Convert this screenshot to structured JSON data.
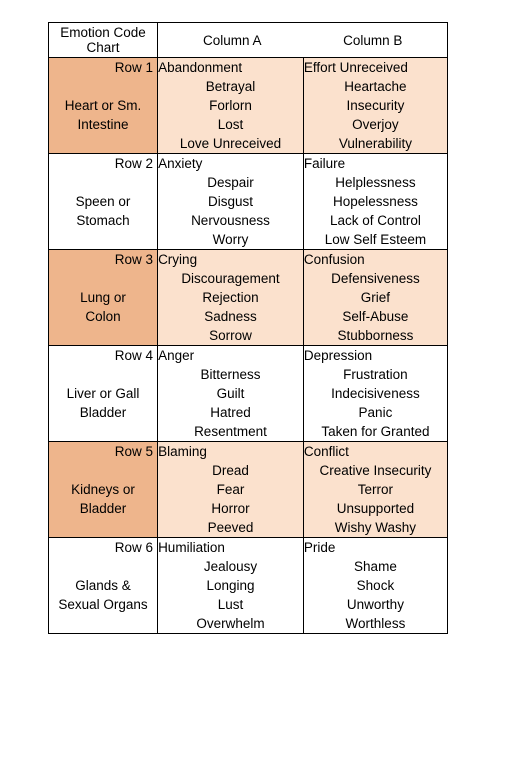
{
  "chart": {
    "title_line1": "Emotion Code",
    "title_line2": "Chart",
    "col_a": "Column A",
    "col_b": "Column B",
    "colors": {
      "odd_label_bg": "#eeb58c",
      "odd_data_bg": "#fbe1cd",
      "even_bg": "#ffffff",
      "border": "#000000",
      "text": "#000000"
    },
    "rows": [
      {
        "row_label": "Row 1",
        "body_label1": "Heart or Sm.",
        "body_label2": "Intestine",
        "colA_head": "Abandonment",
        "colB_head": "Effort Unreceived",
        "colA": [
          "Betrayal",
          "Forlorn",
          "Lost",
          "Love Unreceived"
        ],
        "colB": [
          "Heartache",
          "Insecurity",
          "Overjoy",
          "Vulnerability"
        ]
      },
      {
        "row_label": "Row 2",
        "body_label1": "Speen or",
        "body_label2": "Stomach",
        "colA_head": "Anxiety",
        "colB_head": "Failure",
        "colA": [
          "Despair",
          "Disgust",
          "Nervousness",
          "Worry"
        ],
        "colB": [
          "Helplessness",
          "Hopelessness",
          "Lack of Control",
          "Low Self Esteem"
        ]
      },
      {
        "row_label": "Row 3",
        "body_label1": "Lung or",
        "body_label2": "Colon",
        "colA_head": "Crying",
        "colB_head": "Confusion",
        "colA": [
          "Discouragement",
          "Rejection",
          "Sadness",
          "Sorrow"
        ],
        "colB": [
          "Defensiveness",
          "Grief",
          "Self-Abuse",
          "Stubborness"
        ]
      },
      {
        "row_label": "Row 4",
        "body_label1": "Liver or Gall",
        "body_label2": "Bladder",
        "colA_head": "Anger",
        "colB_head": "Depression",
        "colA": [
          "Bitterness",
          "Guilt",
          "Hatred",
          "Resentment"
        ],
        "colB": [
          "Frustration",
          "Indecisiveness",
          "Panic",
          "Taken for Granted"
        ]
      },
      {
        "row_label": "Row 5",
        "body_label1": "Kidneys or",
        "body_label2": "Bladder",
        "colA_head": "Blaming",
        "colB_head": "Conflict",
        "colA": [
          "Dread",
          "Fear",
          "Horror",
          "Peeved"
        ],
        "colB": [
          "Creative Insecurity",
          "Terror",
          "Unsupported",
          "Wishy Washy"
        ]
      },
      {
        "row_label": "Row 6",
        "body_label1": "Glands &",
        "body_label2": "Sexual Organs",
        "colA_head": "Humiliation",
        "colB_head": "Pride",
        "colA": [
          "Jealousy",
          "Longing",
          "Lust",
          "Overwhelm"
        ],
        "colB": [
          "Shame",
          "Shock",
          "Unworthy",
          "Worthless"
        ]
      }
    ]
  }
}
